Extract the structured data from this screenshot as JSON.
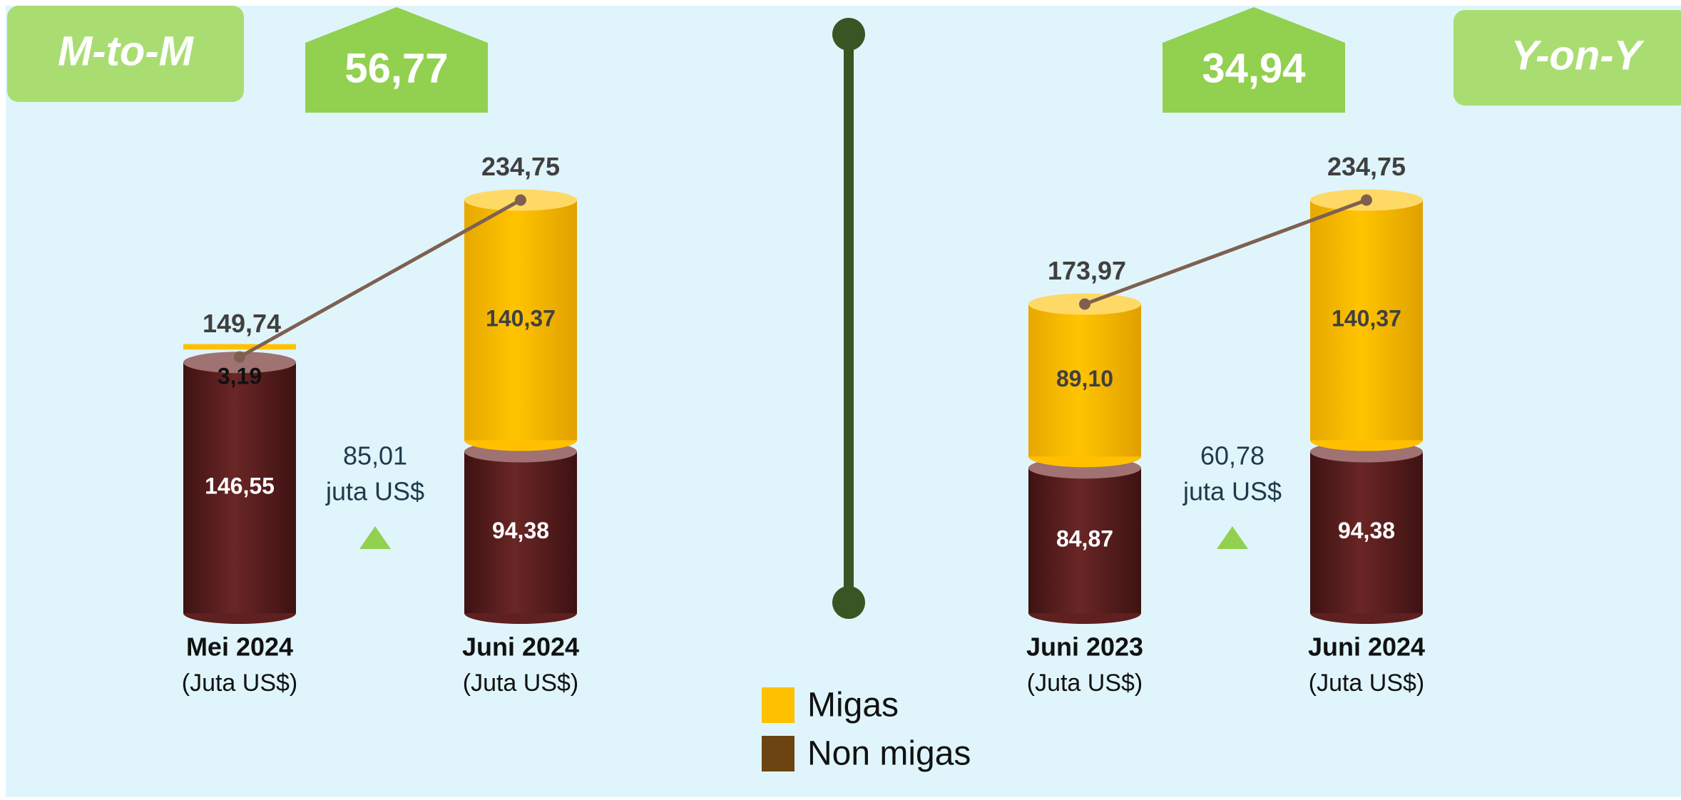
{
  "chart_data": [
    {
      "type": "stacked-cylinder",
      "title": "M-to-M",
      "change": {
        "value": 56.77,
        "label": "56,77"
      },
      "difference": {
        "value": 85.01,
        "label": "85,01",
        "unit": "juta US$"
      },
      "categories": [
        "Mei 2024",
        "Juni 2024"
      ],
      "category_units": [
        "(Juta US$)",
        "(Juta US$)"
      ],
      "series": [
        {
          "name": "Non migas",
          "color": "#5e2020",
          "legend_color": "#6b4412",
          "values": [
            146.55,
            94.38
          ],
          "value_labels": [
            "146,55",
            "94,38"
          ]
        },
        {
          "name": "Migas",
          "color": "#ffc000",
          "legend_color": "#ffc000",
          "values": [
            3.19,
            140.37
          ],
          "value_labels": [
            "3,19",
            "140,37"
          ]
        }
      ],
      "totals": [
        149.74,
        234.75
      ],
      "total_labels": [
        "149,74",
        "234,75"
      ]
    },
    {
      "type": "stacked-cylinder",
      "title": "Y-on-Y",
      "change": {
        "value": 34.94,
        "label": "34,94"
      },
      "difference": {
        "value": 60.78,
        "label": "60,78",
        "unit": "juta US$"
      },
      "categories": [
        "Juni 2023",
        "Juni 2024"
      ],
      "category_units": [
        "(Juta US$)",
        "(Juta US$)"
      ],
      "series": [
        {
          "name": "Non migas",
          "color": "#5e2020",
          "legend_color": "#6b4412",
          "values": [
            84.87,
            94.38
          ],
          "value_labels": [
            "84,87",
            "94,38"
          ]
        },
        {
          "name": "Migas",
          "color": "#ffc000",
          "legend_color": "#ffc000",
          "values": [
            89.1,
            140.37
          ],
          "value_labels": [
            "89,10",
            "140,37"
          ]
        }
      ],
      "totals": [
        173.97,
        234.75
      ],
      "total_labels": [
        "173,97",
        "234,75"
      ]
    }
  ]
}
